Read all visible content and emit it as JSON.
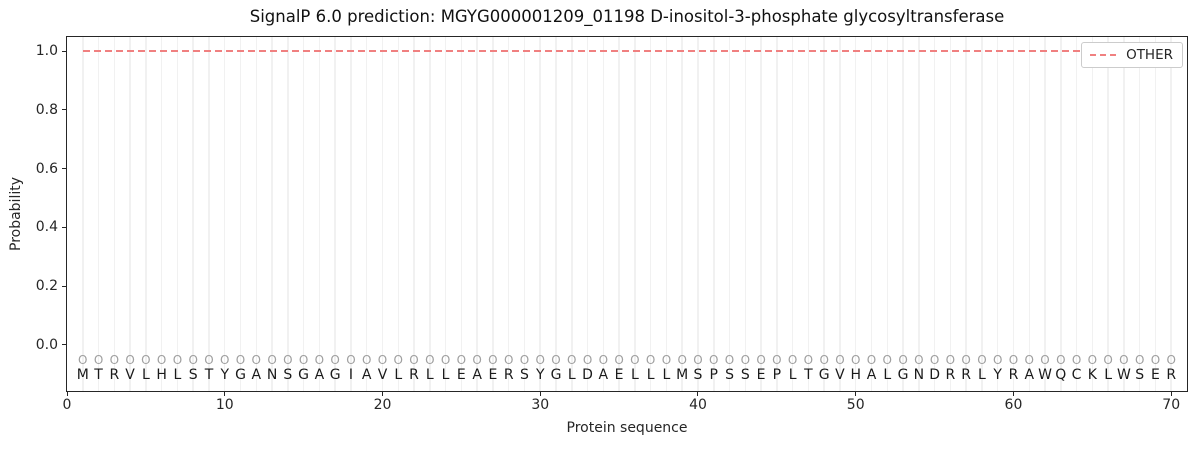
{
  "chart_data": {
    "type": "line",
    "title": "SignalP 6.0 prediction: MGYG000001209_01198 D-inositol-3-phosphate glycosyltransferase",
    "xlabel": "Protein sequence",
    "ylabel": "Probability",
    "xlim": [
      0,
      71
    ],
    "ylim": [
      -0.157,
      1.048
    ],
    "x_ticks": [
      0,
      10,
      20,
      30,
      40,
      50,
      60,
      70
    ],
    "y_ticks": [
      "0.0",
      "0.2",
      "0.4",
      "0.6",
      "0.8",
      "1.0"
    ],
    "grid": "light vertical gridline at every residue position, no horizontal grid",
    "legend": {
      "label": "OTHER",
      "position": "upper right"
    },
    "series": [
      {
        "name": "OTHER",
        "color": "#f08080",
        "line_style": "dashed",
        "x": [
          1,
          2,
          3,
          4,
          5,
          6,
          7,
          8,
          9,
          10,
          11,
          12,
          13,
          14,
          15,
          16,
          17,
          18,
          19,
          20,
          21,
          22,
          23,
          24,
          25,
          26,
          27,
          28,
          29,
          30,
          31,
          32,
          33,
          34,
          35,
          36,
          37,
          38,
          39,
          40,
          41,
          42,
          43,
          44,
          45,
          46,
          47,
          48,
          49,
          50,
          51,
          52,
          53,
          54,
          55,
          56,
          57,
          58,
          59,
          60,
          61,
          62,
          63,
          64,
          65,
          66,
          67,
          68,
          69,
          70
        ],
        "values": [
          1.0,
          1.0,
          1.0,
          1.0,
          1.0,
          1.0,
          1.0,
          1.0,
          1.0,
          1.0,
          1.0,
          1.0,
          1.0,
          1.0,
          1.0,
          1.0,
          1.0,
          1.0,
          1.0,
          1.0,
          1.0,
          1.0,
          1.0,
          1.0,
          1.0,
          1.0,
          1.0,
          1.0,
          1.0,
          1.0,
          1.0,
          1.0,
          1.0,
          1.0,
          1.0,
          1.0,
          1.0,
          1.0,
          1.0,
          1.0,
          1.0,
          1.0,
          1.0,
          1.0,
          1.0,
          1.0,
          1.0,
          1.0,
          1.0,
          1.0,
          1.0,
          1.0,
          1.0,
          1.0,
          1.0,
          1.0,
          1.0,
          1.0,
          1.0,
          1.0,
          1.0,
          1.0,
          1.0,
          1.0,
          1.0,
          1.0,
          1.0,
          1.0,
          1.0,
          1.0
        ]
      }
    ],
    "sequence": "MTRVLHLSTYGANSGAGIAVLRLLEAERSYGLDAELLLMSPSSEPLTGVHALGNDRRLYRAWQCKLWSER",
    "predicted_labels": "OOOOOOOOOOOOOOOOOOOOOOOOOOOOOOOOOOOOOOOOOOOOOOOOOOOOOOOOOOOOOOOOOOOOOO"
  },
  "colors": {
    "line": "#f08080",
    "grid": "#f1f1f1",
    "marker": "#a0a0a0",
    "sequence_text": "#1a1a1a",
    "axis": "#262626",
    "legend_border": "#cccccc"
  }
}
